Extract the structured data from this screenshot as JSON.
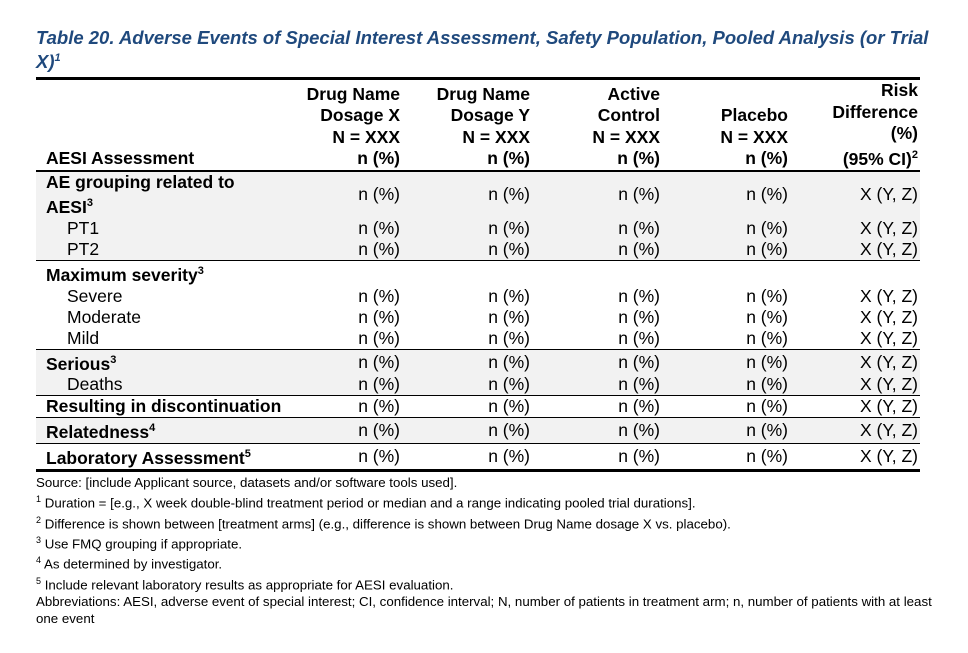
{
  "title": "Table 20. Adverse Events of Special Interest Assessment, Safety Population, Pooled Analysis (or Trial X)",
  "title_sup": "1",
  "header": {
    "col0": "AESI Assessment",
    "col1": [
      "Drug Name",
      "Dosage X",
      "N = XXX",
      "n (%)"
    ],
    "col2": [
      "Drug Name",
      "Dosage Y",
      "N = XXX",
      "n (%)"
    ],
    "col3": [
      "Active",
      "Control",
      "N = XXX",
      "n (%)"
    ],
    "col4": [
      "Placebo",
      "N = XXX",
      "n (%)"
    ],
    "col5": [
      "Risk",
      "Difference",
      "(%)",
      "(95% CI)"
    ],
    "col5_sup": "2"
  },
  "rows": [
    {
      "label": "AE grouping related to AESI",
      "sup": "3",
      "cells": [
        "n (%)",
        "n (%)",
        "n (%)",
        "n (%)",
        "X (Y, Z)"
      ]
    },
    {
      "label": "PT1",
      "cells": [
        "n (%)",
        "n (%)",
        "n (%)",
        "n (%)",
        "X (Y, Z)"
      ]
    },
    {
      "label": "PT2",
      "cells": [
        "n (%)",
        "n (%)",
        "n (%)",
        "n (%)",
        "X (Y, Z)"
      ]
    },
    {
      "label": "Maximum severity",
      "sup": "3"
    },
    {
      "label": "Severe",
      "cells": [
        "n (%)",
        "n (%)",
        "n (%)",
        "n (%)",
        "X (Y, Z)"
      ]
    },
    {
      "label": "Moderate",
      "cells": [
        "n (%)",
        "n (%)",
        "n (%)",
        "n (%)",
        "X (Y, Z)"
      ]
    },
    {
      "label": "Mild",
      "cells": [
        "n (%)",
        "n (%)",
        "n (%)",
        "n (%)",
        "X (Y, Z)"
      ]
    },
    {
      "label": "Serious",
      "sup": "3",
      "cells": [
        "n (%)",
        "n (%)",
        "n (%)",
        "n (%)",
        "X (Y, Z)"
      ]
    },
    {
      "label": "Deaths",
      "cells": [
        "n (%)",
        "n (%)",
        "n (%)",
        "n (%)",
        "X (Y, Z)"
      ]
    },
    {
      "label": "Resulting in discontinuation",
      "cells": [
        "n (%)",
        "n (%)",
        "n (%)",
        "n (%)",
        "X (Y, Z)"
      ]
    },
    {
      "label": "Relatedness",
      "sup": "4",
      "cells": [
        "n (%)",
        "n (%)",
        "n (%)",
        "n (%)",
        "X (Y, Z)"
      ]
    },
    {
      "label": "Laboratory Assessment",
      "sup": "5",
      "cells": [
        "n (%)",
        "n (%)",
        "n (%)",
        "n (%)",
        "X (Y, Z)"
      ]
    }
  ],
  "footnotes": {
    "source": "Source: [include Applicant source, datasets and/or software tools used].",
    "f1": "Duration = [e.g., X week double-blind treatment period or median and a range indicating pooled trial durations].",
    "f2": "Difference is shown between [treatment arms] (e.g., difference is shown between Drug Name dosage X vs. placebo).",
    "f3": "Use FMQ grouping if appropriate.",
    "f4": "As determined by investigator.",
    "f5": "Include relevant laboratory results as appropriate for AESI evaluation.",
    "abbrev": "Abbreviations: AESI, adverse event of special interest; CI, confidence interval; N, number of patients in treatment arm; n, number of patients with at least one event",
    "nums": [
      "1",
      "2",
      "3",
      "4",
      "5"
    ]
  },
  "colors": {
    "title": "#1f497d",
    "shade": "#f2f2f2"
  }
}
